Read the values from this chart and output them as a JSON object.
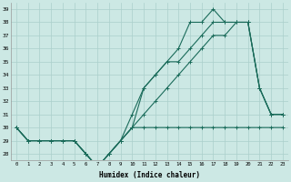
{
  "xlabel": "Humidex (Indice chaleur)",
  "bg_color": "#cce8e4",
  "grid_color": "#aacfcb",
  "line_color": "#1a6b5a",
  "x": [
    0,
    1,
    2,
    3,
    4,
    5,
    6,
    7,
    8,
    9,
    10,
    11,
    12,
    13,
    14,
    15,
    16,
    17,
    18,
    19,
    20,
    21,
    22,
    23
  ],
  "line1": [
    30,
    29,
    29,
    29,
    29,
    29,
    28,
    27,
    28,
    29,
    30,
    30,
    30,
    30,
    30,
    30,
    30,
    30,
    30,
    30,
    30,
    30,
    30,
    30
  ],
  "line2": [
    30,
    29,
    29,
    29,
    29,
    29,
    28,
    27,
    28,
    29,
    30,
    31,
    32,
    33,
    34,
    35,
    36,
    37,
    37,
    38,
    38,
    33,
    31,
    31
  ],
  "line3": [
    30,
    29,
    29,
    29,
    29,
    29,
    28,
    27,
    28,
    29,
    31,
    33,
    34,
    35,
    35,
    36,
    37,
    38,
    38,
    38,
    38,
    33,
    31,
    31
  ],
  "line4": [
    30,
    29,
    29,
    29,
    29,
    29,
    28,
    27,
    28,
    29,
    30,
    33,
    34,
    35,
    36,
    38,
    38,
    39,
    38,
    38,
    38,
    33,
    31,
    31
  ],
  "ylim": [
    27.5,
    39.5
  ],
  "yticks": [
    28,
    29,
    30,
    31,
    32,
    33,
    34,
    35,
    36,
    37,
    38,
    39
  ],
  "xticks": [
    0,
    1,
    2,
    3,
    4,
    5,
    6,
    7,
    8,
    9,
    10,
    11,
    12,
    13,
    14,
    15,
    16,
    17,
    18,
    19,
    20,
    21,
    22,
    23
  ],
  "xlim": [
    -0.5,
    23.5
  ]
}
